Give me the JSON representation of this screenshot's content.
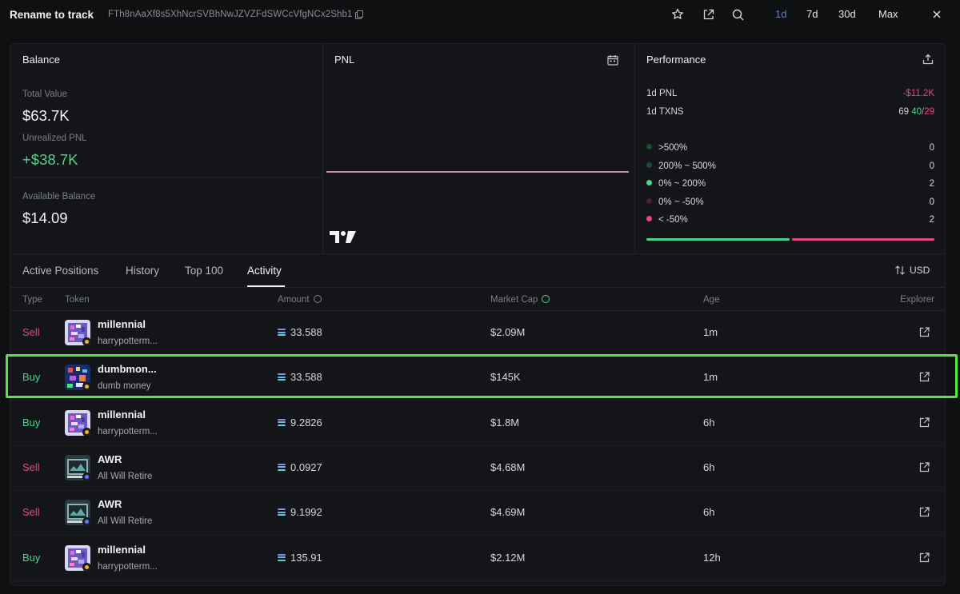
{
  "header": {
    "title": "Rename to track",
    "address": "FTh8nAaXf8s5XhNcrSVBhNwJZVZFdSWCcVfgNCx2Shb1",
    "timeframes": [
      "1d",
      "7d",
      "30d",
      "Max"
    ],
    "active_timeframe": "1d"
  },
  "balance": {
    "title": "Balance",
    "total_value_label": "Total Value",
    "total_value": "$63.7K",
    "unrealized_label": "Unrealized PNL",
    "unrealized_value": "+$38.7K",
    "available_label": "Available Balance",
    "available_value": "$14.09"
  },
  "pnl": {
    "title": "PNL"
  },
  "performance": {
    "title": "Performance",
    "pnl_label": "1d PNL",
    "pnl_value": "-$11.2K",
    "txns_label": "1d TXNS",
    "txns_total": "69",
    "txns_buy": "40",
    "txns_sep": "/",
    "txns_sell": "29",
    "buckets": [
      {
        "label": ">500%",
        "count": "0",
        "color": "#1f4a33"
      },
      {
        "label": "200% ~ 500%",
        "count": "0",
        "color": "#1f4a33"
      },
      {
        "label": "0% ~ 200%",
        "count": "2",
        "color": "#4ed38b"
      },
      {
        "label": "0% ~ -50%",
        "count": "0",
        "color": "#4a1f30"
      },
      {
        "label": "< -50%",
        "count": "2",
        "color": "#e5487d"
      }
    ],
    "win_fraction": 0.5
  },
  "tabs": {
    "items": [
      "Active Positions",
      "History",
      "Top 100",
      "Activity"
    ],
    "active": "Activity",
    "currency": "USD"
  },
  "table": {
    "headers": {
      "type": "Type",
      "token": "Token",
      "amount": "Amount",
      "market_cap": "Market Cap",
      "age": "Age",
      "explorer": "Explorer"
    },
    "rows": [
      {
        "type": "Sell",
        "name": "millennial",
        "sub": "harrypotterm...",
        "amount": "33.588",
        "mcap": "$2.09M",
        "age": "1m",
        "avatar": "purple"
      },
      {
        "type": "Buy",
        "name": "dumbmon...",
        "sub": "dumb money",
        "amount": "33.588",
        "mcap": "$145K",
        "age": "1m",
        "avatar": "dark"
      },
      {
        "type": "Buy",
        "name": "millennial",
        "sub": "harrypotterm...",
        "amount": "9.2826",
        "mcap": "$1.8M",
        "age": "6h",
        "avatar": "purple"
      },
      {
        "type": "Sell",
        "name": "AWR",
        "sub": "All Will Retire",
        "amount": "0.0927",
        "mcap": "$4.68M",
        "age": "6h",
        "avatar": "teal"
      },
      {
        "type": "Sell",
        "name": "AWR",
        "sub": "All Will Retire",
        "amount": "9.1992",
        "mcap": "$4.69M",
        "age": "6h",
        "avatar": "teal"
      },
      {
        "type": "Buy",
        "name": "millennial",
        "sub": "harrypotterm...",
        "amount": "135.91",
        "mcap": "$2.12M",
        "age": "12h",
        "avatar": "purple"
      }
    ]
  },
  "colors": {
    "buy": "#4ed38b",
    "sell": "#e5487d",
    "accent": "#5b7cf5",
    "highlight": "#55e640"
  }
}
